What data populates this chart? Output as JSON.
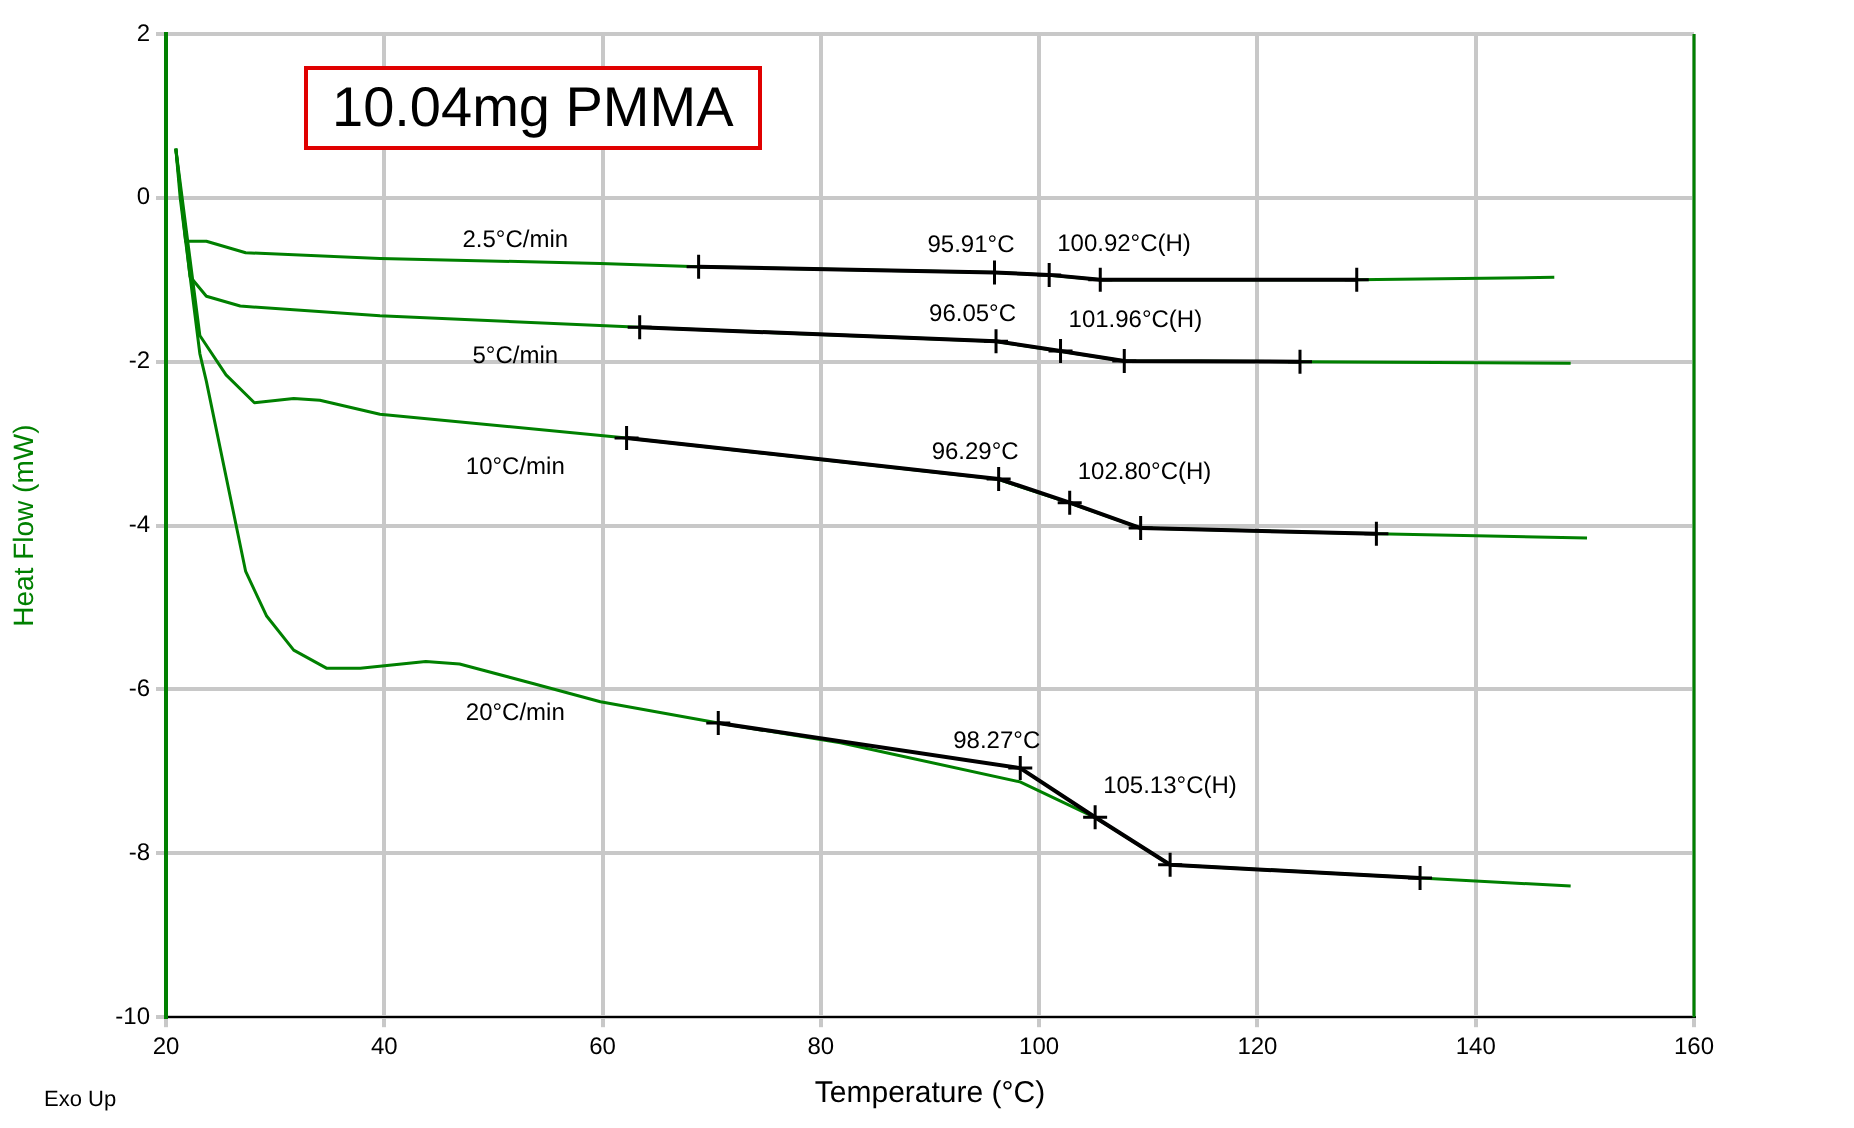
{
  "chart_data": {
    "type": "line",
    "title": "10.04mg PMMA",
    "xlabel": "Temperature (°C)",
    "ylabel": "Heat Flow (mW)",
    "xlim": [
      20,
      160
    ],
    "xticks": [
      20,
      40,
      60,
      80,
      100,
      120,
      140,
      160
    ],
    "ylim": [
      -10,
      2
    ],
    "yticks": [
      -10,
      -8,
      -6,
      -4,
      -2,
      0,
      2
    ],
    "grid": true,
    "legend": false,
    "marker": "none",
    "line_style": "solid",
    "series": [
      {
        "name": "2.5°C/min",
        "color": "#008000",
        "x": [
          20.9,
          21.8,
          23.7,
          27.3,
          39.6,
          59.8,
          68.8,
          95.9,
          100.7,
          105.6,
          129.1,
          147.2
        ],
        "values": [
          0.6,
          -0.53,
          -0.53,
          -0.67,
          -0.74,
          -0.8,
          -0.84,
          -0.91,
          -0.94,
          -1.0,
          -1.0,
          -0.97
        ]
      },
      {
        "name": "5°C/min",
        "color": "#008000",
        "x": [
          20.9,
          22.2,
          23.7,
          26.8,
          39.6,
          63.4,
          95.9,
          101.8,
          107.8,
          123.9,
          148.7
        ],
        "values": [
          0.6,
          -0.96,
          -1.2,
          -1.32,
          -1.44,
          -1.58,
          -1.75,
          -1.87,
          -1.99,
          -2.0,
          -2.02
        ]
      },
      {
        "name": "10°C/min",
        "color": "#008000",
        "x": [
          20.9,
          23.1,
          25.5,
          28.1,
          31.7,
          34.1,
          39.6,
          62.2,
          96.1,
          102.7,
          109.3,
          130.9,
          150.2
        ],
        "values": [
          0.6,
          -1.68,
          -2.16,
          -2.5,
          -2.45,
          -2.47,
          -2.64,
          -2.93,
          -3.43,
          -3.72,
          -4.03,
          -4.1,
          -4.15
        ]
      },
      {
        "name": "20°C/min",
        "color": "#008000",
        "x": [
          20.9,
          21.3,
          23.1,
          23.7,
          27.3,
          29.2,
          31.7,
          34.7,
          37.8,
          43.8,
          46.9,
          53.7,
          59.8,
          70.6,
          81.8,
          98.3,
          105.1,
          112.0,
          134.9,
          148.7
        ],
        "values": [
          0.6,
          0.0,
          -1.9,
          -2.24,
          -4.56,
          -5.1,
          -5.52,
          -5.74,
          -5.74,
          -5.66,
          -5.69,
          -5.93,
          -6.15,
          -6.41,
          -6.65,
          -7.13,
          -7.56,
          -8.14,
          -8.3,
          -8.4
        ]
      },
      {
        "color": "#000000",
        "marker": "cross",
        "x": [
          68.8,
          95.91,
          100.92,
          105.6,
          129.1
        ],
        "values": [
          -0.84,
          -0.91,
          -0.94,
          -1.0,
          -1.0
        ]
      },
      {
        "color": "#000000",
        "marker": "cross",
        "x": [
          63.4,
          96.05,
          101.96,
          107.8,
          123.9
        ],
        "values": [
          -1.58,
          -1.75,
          -1.87,
          -1.99,
          -2.0
        ]
      },
      {
        "color": "#000000",
        "marker": "cross",
        "x": [
          62.2,
          96.29,
          102.8,
          109.3,
          130.9
        ],
        "values": [
          -2.93,
          -3.43,
          -3.72,
          -4.03,
          -4.1
        ]
      },
      {
        "color": "#000000",
        "marker": "cross",
        "x": [
          70.6,
          98.27,
          105.13,
          112.0,
          134.9
        ],
        "values": [
          -6.41,
          -6.96,
          -7.56,
          -8.14,
          -8.3
        ]
      }
    ],
    "annotations": [
      {
        "text": "95.91°C",
        "x": 95.91,
        "y": -0.91
      },
      {
        "text": "100.92°C(H)",
        "x": 100.92,
        "y": -0.94
      },
      {
        "text": "96.05°C",
        "x": 96.05,
        "y": -1.75
      },
      {
        "text": "101.96°C(H)",
        "x": 101.96,
        "y": -1.87
      },
      {
        "text": "96.29°C",
        "x": 96.29,
        "y": -3.43
      },
      {
        "text": "102.80°C(H)",
        "x": 102.8,
        "y": -3.72
      },
      {
        "text": "98.27°C",
        "x": 98.27,
        "y": -6.96
      },
      {
        "text": "105.13°C(H)",
        "x": 105.13,
        "y": -7.56
      },
      "Exo Up"
    ]
  }
}
